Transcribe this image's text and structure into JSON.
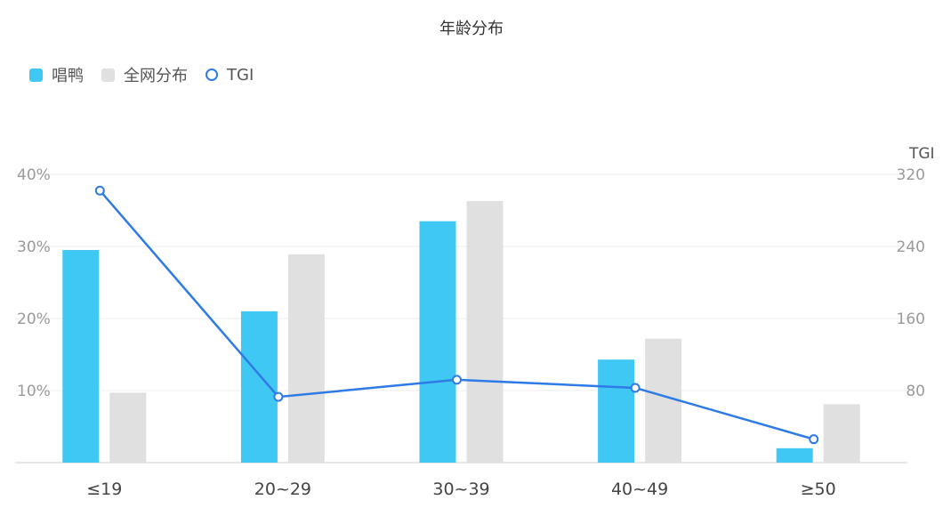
{
  "chart_data": {
    "type": "bar",
    "title": "年龄分布",
    "categories": [
      "≤19",
      "20~29",
      "30~39",
      "40~49",
      "≥50"
    ],
    "series": [
      {
        "name": "唱鸭",
        "type": "bar",
        "axis": "left",
        "color": "#40c8f4",
        "values": [
          29.5,
          21,
          33.5,
          14.3,
          2
        ]
      },
      {
        "name": "全网分布",
        "type": "bar",
        "axis": "left",
        "color": "#e0e0e0",
        "values": [
          9.7,
          28.9,
          36.3,
          17.2,
          8.1
        ]
      },
      {
        "name": "TGI",
        "type": "line",
        "axis": "right",
        "color": "#2e7ae6",
        "values": [
          302,
          73,
          92,
          83,
          26
        ]
      }
    ],
    "y_left": {
      "ylim": [
        0,
        40
      ],
      "ticks": [
        10,
        20,
        30,
        40
      ],
      "tick_labels": [
        "10%",
        "20%",
        "30%",
        "40%"
      ]
    },
    "y_right": {
      "name": "TGI",
      "ylim": [
        0,
        320
      ],
      "ticks": [
        80,
        160,
        240,
        320
      ],
      "tick_labels": [
        "80",
        "160",
        "240",
        "320"
      ]
    },
    "legend": "top-left",
    "grid": true
  }
}
